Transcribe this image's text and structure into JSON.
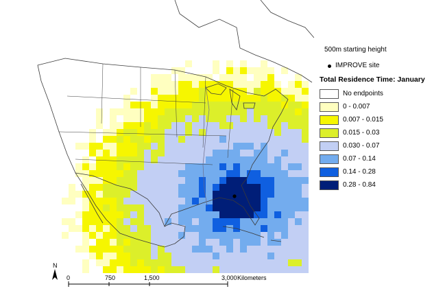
{
  "legend": {
    "starting_height": "500m starting height",
    "site_label": "IMPROVE site",
    "title": "Total Residence Time: January",
    "classes": [
      {
        "label": "No endpoints",
        "color": "#ffffff"
      },
      {
        "label": "0 - 0.007",
        "color": "#ffffc0"
      },
      {
        "label": "0.007 - 0.015",
        "color": "#f6f600"
      },
      {
        "label": "0.015 - 0.03",
        "color": "#dcef2a"
      },
      {
        "label": "0.030 - 0.07",
        "color": "#c2cff4"
      },
      {
        "label": "0.07 - 0.14",
        "color": "#73acee"
      },
      {
        "label": "0.14 - 0.28",
        "color": "#0f5fe0"
      },
      {
        "label": "0.28 - 0.84",
        "color": "#001e78"
      }
    ]
  },
  "scale": {
    "north": "N",
    "ticks": [
      "0",
      "750",
      "1,500",
      "3,000"
    ],
    "unit": "Kilometers"
  }
}
